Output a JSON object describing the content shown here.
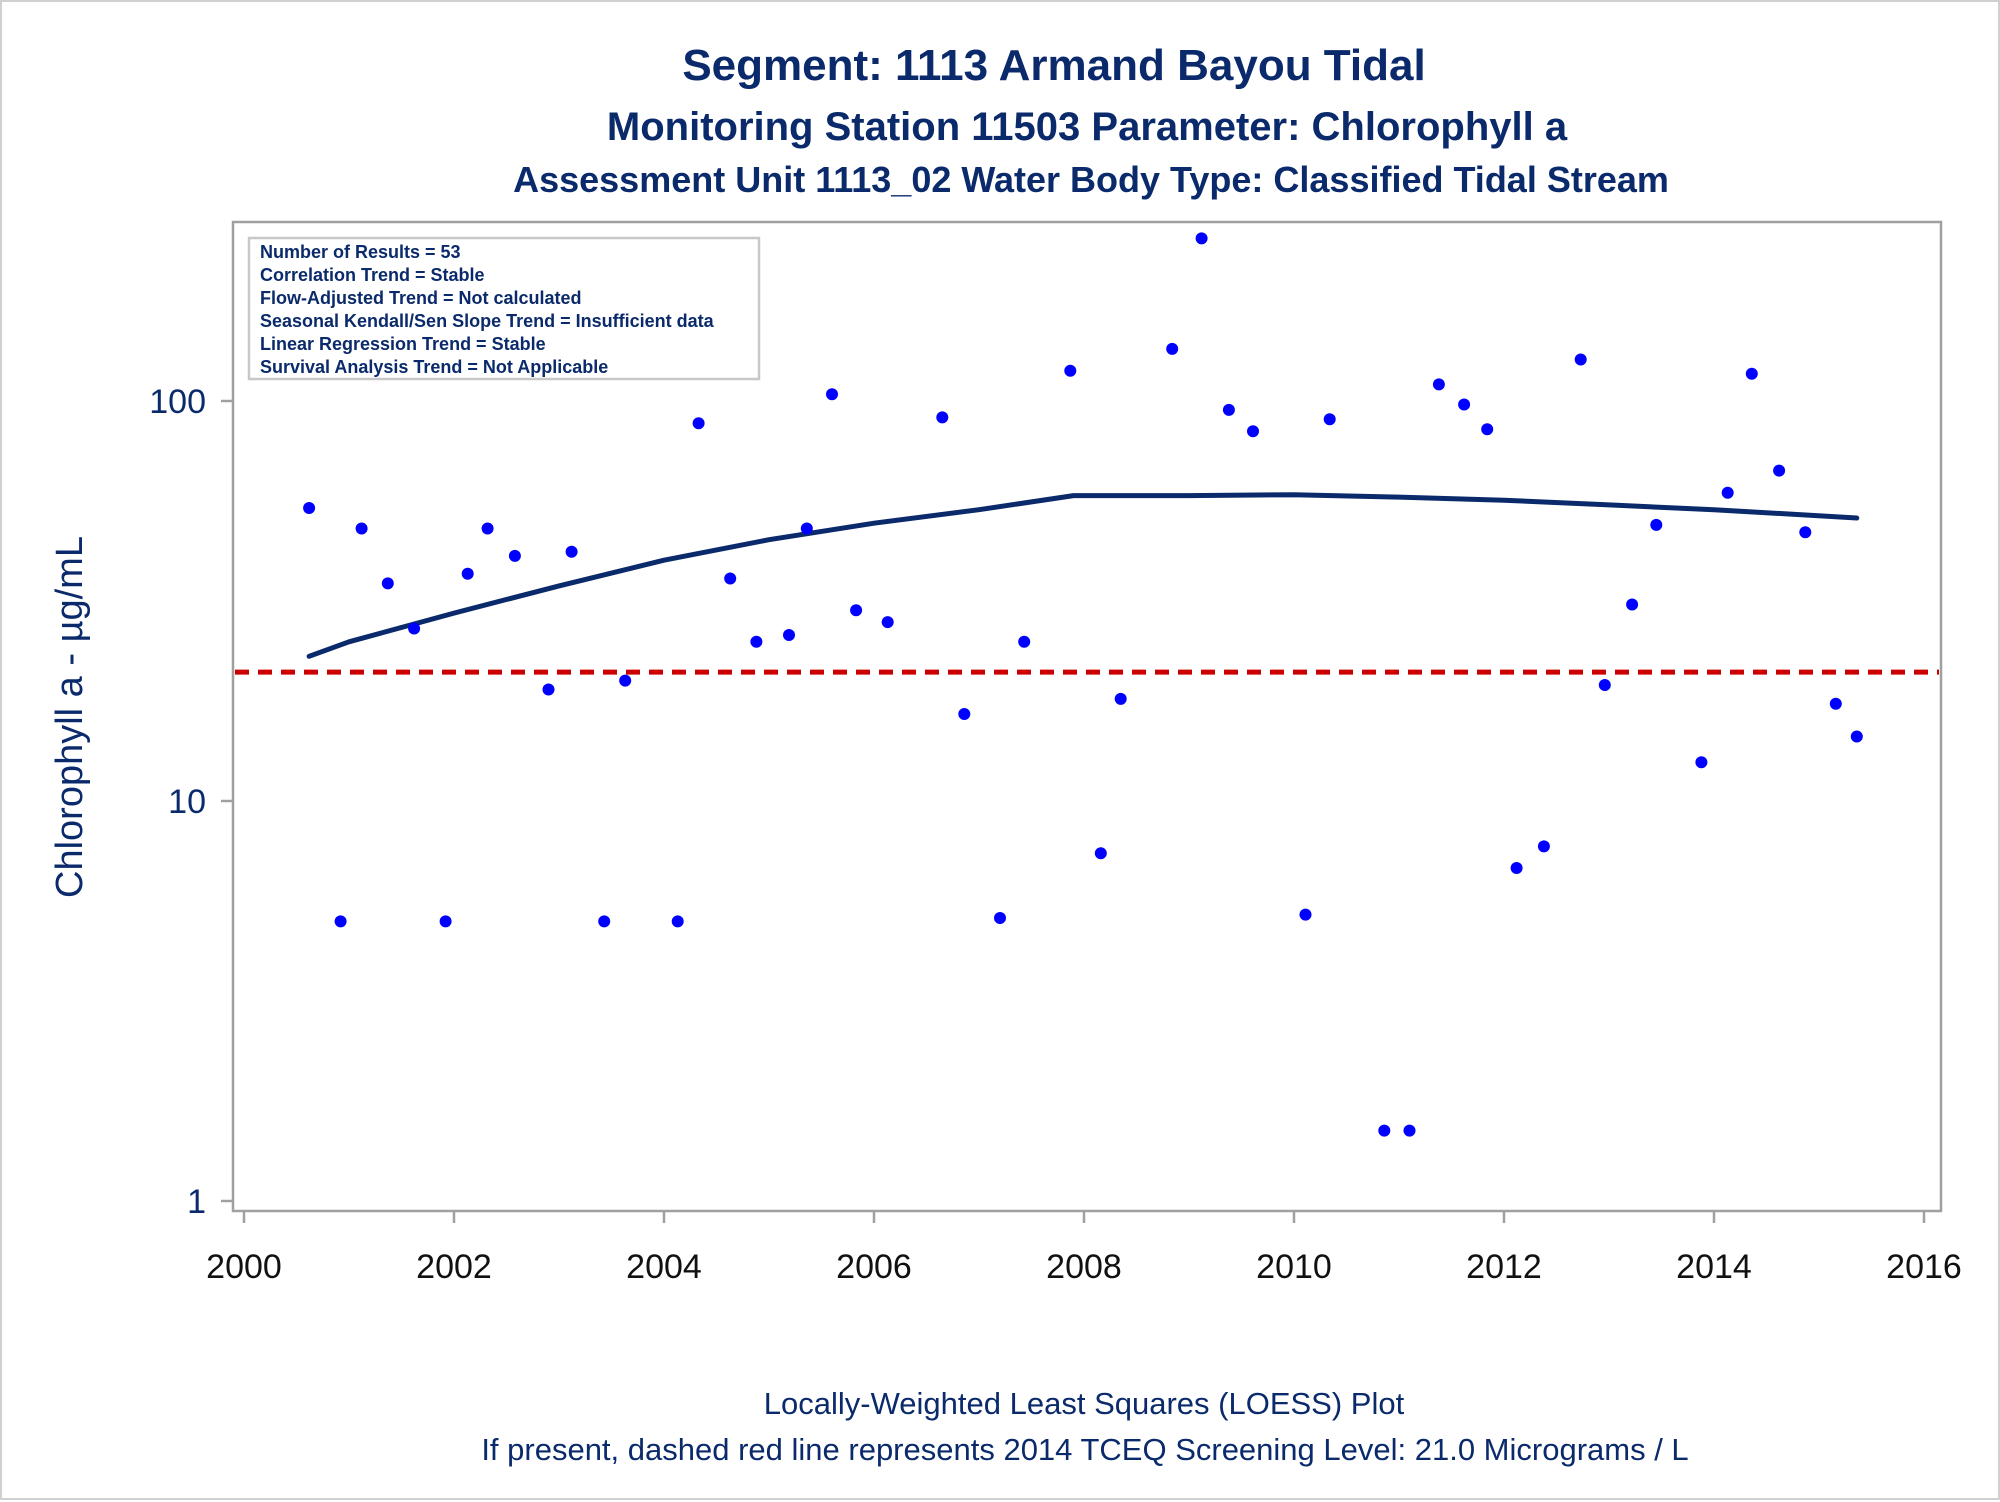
{
  "chart_data": {
    "type": "scatter",
    "title": "Segment: 1113  Armand Bayou Tidal",
    "subtitle": "Monitoring Station 11503 Parameter: Chlorophyll a",
    "subtitle2": "Assessment Unit 1113_02   Water Body Type: Classified Tidal Stream",
    "ylabel": "Chlorophyll a -  µg/mL",
    "xlabel": "",
    "y_scale": "log",
    "xlim": [
      2000,
      2016
    ],
    "ylim": [
      1,
      250
    ],
    "x_ticks": [
      2000,
      2002,
      2004,
      2006,
      2008,
      2010,
      2012,
      2014,
      2016
    ],
    "x_tick_labels": [
      "2000",
      "2002",
      "2004",
      "2006",
      "2008",
      "2010",
      "2012",
      "2014",
      "2016"
    ],
    "y_ticks": [
      1,
      10,
      100
    ],
    "y_tick_labels": [
      "1",
      "10",
      "100"
    ],
    "grid": false,
    "stats_box": [
      "Number of Results = 53",
      "Correlation Trend = Stable",
      "Flow-Adjusted Trend = Not calculated",
      "Seasonal Kendall/Sen Slope Trend = Insufficient data",
      "Linear Regression Trend = Stable",
      "Survival Analysis Trend = Not Applicable"
    ],
    "stats_box_position": "top-left",
    "screening_level": 21.0,
    "footnotes": [
      "Locally-Weighted Least Squares (LOESS) Plot",
      "If present, dashed red line represents 2014 TCEQ Screening Level: 21.0 Micrograms / L"
    ],
    "colors": {
      "points": "#0000ff",
      "loess": "#0a2a6b",
      "screening": "#cc0000",
      "text": "#0a2a6b"
    },
    "points": [
      {
        "x": 2000.62,
        "y": 54
      },
      {
        "x": 2000.92,
        "y": 5
      },
      {
        "x": 2001.12,
        "y": 48
      },
      {
        "x": 2001.37,
        "y": 35
      },
      {
        "x": 2001.62,
        "y": 27
      },
      {
        "x": 2001.92,
        "y": 5
      },
      {
        "x": 2002.13,
        "y": 37
      },
      {
        "x": 2002.32,
        "y": 48
      },
      {
        "x": 2002.58,
        "y": 41
      },
      {
        "x": 2002.9,
        "y": 19
      },
      {
        "x": 2003.12,
        "y": 42
      },
      {
        "x": 2003.43,
        "y": 5
      },
      {
        "x": 2003.63,
        "y": 20
      },
      {
        "x": 2004.13,
        "y": 5
      },
      {
        "x": 2004.33,
        "y": 88
      },
      {
        "x": 2004.63,
        "y": 36
      },
      {
        "x": 2004.88,
        "y": 25
      },
      {
        "x": 2005.19,
        "y": 26
      },
      {
        "x": 2005.36,
        "y": 48
      },
      {
        "x": 2005.6,
        "y": 104
      },
      {
        "x": 2005.83,
        "y": 30
      },
      {
        "x": 2006.13,
        "y": 28
      },
      {
        "x": 2006.65,
        "y": 91
      },
      {
        "x": 2006.86,
        "y": 16.5
      },
      {
        "x": 2007.2,
        "y": 5.1
      },
      {
        "x": 2007.43,
        "y": 25
      },
      {
        "x": 2007.87,
        "y": 119
      },
      {
        "x": 2008.16,
        "y": 7.4
      },
      {
        "x": 2008.35,
        "y": 18
      },
      {
        "x": 2008.84,
        "y": 135
      },
      {
        "x": 2009.12,
        "y": 255
      },
      {
        "x": 2009.38,
        "y": 95
      },
      {
        "x": 2009.61,
        "y": 84
      },
      {
        "x": 2010.11,
        "y": 5.2
      },
      {
        "x": 2010.34,
        "y": 90
      },
      {
        "x": 2010.86,
        "y": 1.5
      },
      {
        "x": 2011.1,
        "y": 1.5
      },
      {
        "x": 2011.38,
        "y": 110
      },
      {
        "x": 2011.62,
        "y": 98
      },
      {
        "x": 2011.84,
        "y": 85
      },
      {
        "x": 2012.12,
        "y": 6.8
      },
      {
        "x": 2012.38,
        "y": 7.7
      },
      {
        "x": 2012.73,
        "y": 127
      },
      {
        "x": 2012.96,
        "y": 19.5
      },
      {
        "x": 2013.22,
        "y": 31
      },
      {
        "x": 2013.45,
        "y": 49
      },
      {
        "x": 2013.88,
        "y": 12.5
      },
      {
        "x": 2014.13,
        "y": 59
      },
      {
        "x": 2014.36,
        "y": 117
      },
      {
        "x": 2014.62,
        "y": 67
      },
      {
        "x": 2014.87,
        "y": 47
      },
      {
        "x": 2015.16,
        "y": 17.5
      },
      {
        "x": 2015.36,
        "y": 14.5
      }
    ],
    "loess": [
      {
        "x": 2000.62,
        "y": 23
      },
      {
        "x": 2001.0,
        "y": 25
      },
      {
        "x": 2002.0,
        "y": 29.5
      },
      {
        "x": 2003.0,
        "y": 34.5
      },
      {
        "x": 2004.0,
        "y": 40
      },
      {
        "x": 2005.0,
        "y": 45
      },
      {
        "x": 2006.0,
        "y": 49.5
      },
      {
        "x": 2007.0,
        "y": 53.5
      },
      {
        "x": 2007.9,
        "y": 58
      },
      {
        "x": 2009.0,
        "y": 58
      },
      {
        "x": 2010.0,
        "y": 58.3
      },
      {
        "x": 2011.0,
        "y": 57.5
      },
      {
        "x": 2012.0,
        "y": 56.5
      },
      {
        "x": 2013.0,
        "y": 55
      },
      {
        "x": 2014.0,
        "y": 53.5
      },
      {
        "x": 2015.36,
        "y": 51
      }
    ]
  }
}
